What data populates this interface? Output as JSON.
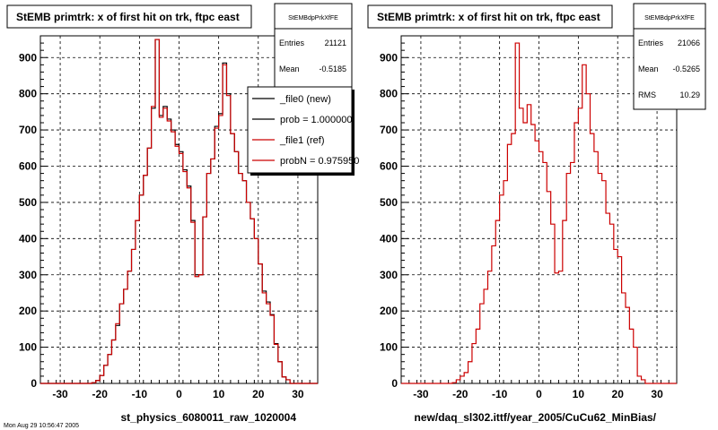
{
  "chart_data": [
    {
      "type": "histogram",
      "title": "StEMB primtrk: x of first hit on trk, ftpc east",
      "xlabel": "st_physics_6080011_raw_1020004",
      "xlim": [
        -35,
        35
      ],
      "ylim": [
        0,
        960
      ],
      "xticks": [
        "-30",
        "-20",
        "-10",
        "0",
        "10",
        "20",
        "30"
      ],
      "yticks": [
        "0",
        "100",
        "200",
        "300",
        "400",
        "500",
        "600",
        "700",
        "800",
        "900"
      ],
      "grid": true,
      "bin_width": 1,
      "bin_start": -35,
      "stats": {
        "name": "StEMBdpPrkXfFE",
        "rows": [
          {
            "label": "Entries",
            "value": "21121"
          },
          {
            "label": "Mean",
            "value": "-0.5185"
          }
        ]
      },
      "legend": {
        "placement": "top-right",
        "entries": [
          {
            "text": "_file0 (new)",
            "color": "#000000"
          },
          {
            "text": "prob = 1.000000",
            "color": "#000000"
          },
          {
            "text": "_file1 (ref)",
            "color": "#cc0000"
          },
          {
            "text": "probN = 0.975950",
            "color": "#cc0000"
          }
        ]
      },
      "series": [
        {
          "name": "_file0 (new)",
          "color": "#000000",
          "values": [
            0,
            0,
            0,
            0,
            0,
            0,
            0,
            0,
            0,
            0,
            0,
            0,
            0,
            2,
            8,
            22,
            50,
            80,
            120,
            160,
            220,
            260,
            310,
            370,
            450,
            520,
            575,
            650,
            760,
            950,
            740,
            765,
            730,
            700,
            660,
            640,
            590,
            545,
            450,
            300,
            300,
            460,
            580,
            620,
            710,
            745,
            885,
            800,
            690,
            640,
            580,
            560,
            500,
            455,
            400,
            330,
            255,
            225,
            190,
            110,
            60,
            18,
            10,
            0,
            0,
            0,
            0,
            0,
            0,
            0
          ]
        },
        {
          "name": "_file1 (ref)",
          "color": "#cc0000",
          "values": [
            0,
            0,
            0,
            0,
            0,
            0,
            0,
            0,
            0,
            0,
            0,
            0,
            0,
            2,
            8,
            22,
            50,
            80,
            120,
            165,
            220,
            260,
            310,
            370,
            450,
            520,
            575,
            650,
            765,
            950,
            735,
            760,
            725,
            695,
            655,
            635,
            585,
            540,
            445,
            295,
            300,
            460,
            580,
            620,
            705,
            740,
            880,
            795,
            690,
            640,
            580,
            560,
            500,
            455,
            400,
            330,
            250,
            220,
            188,
            108,
            60,
            18,
            10,
            0,
            0,
            0,
            0,
            0,
            0,
            0
          ]
        }
      ]
    },
    {
      "type": "histogram",
      "title": "StEMB primtrk: x of first hit on trk, ftpc east",
      "xlabel": "new/daq_sl302.ittf/year_2005/CuCu62_MinBias/",
      "xlim": [
        -35,
        35
      ],
      "ylim": [
        0,
        960
      ],
      "xticks": [
        "-30",
        "-20",
        "-10",
        "0",
        "10",
        "20",
        "30"
      ],
      "yticks": [
        "0",
        "100",
        "200",
        "300",
        "400",
        "500",
        "600",
        "700",
        "800",
        "900"
      ],
      "grid": true,
      "bin_width": 1,
      "bin_start": -35,
      "stats": {
        "name": "StEMBdpPrkXfFE",
        "rows": [
          {
            "label": "Entries",
            "value": "21066"
          },
          {
            "label": "Mean",
            "value": "-0.5265"
          },
          {
            "label": "RMS",
            "value": "10.29"
          }
        ]
      },
      "series": [
        {
          "name": "",
          "color": "#cc0000",
          "values": [
            0,
            0,
            0,
            0,
            0,
            0,
            0,
            0,
            0,
            0,
            0,
            0,
            0,
            2,
            10,
            20,
            30,
            60,
            110,
            150,
            220,
            260,
            310,
            380,
            450,
            520,
            560,
            660,
            690,
            940,
            760,
            720,
            770,
            715,
            670,
            640,
            610,
            530,
            440,
            305,
            310,
            450,
            580,
            610,
            720,
            760,
            880,
            800,
            690,
            640,
            580,
            560,
            470,
            440,
            370,
            350,
            250,
            210,
            150,
            100,
            20,
            10,
            0,
            0,
            0,
            0,
            0,
            0,
            0,
            0
          ]
        }
      ]
    }
  ],
  "footer": "Mon Aug 29 10:56:47 2005"
}
